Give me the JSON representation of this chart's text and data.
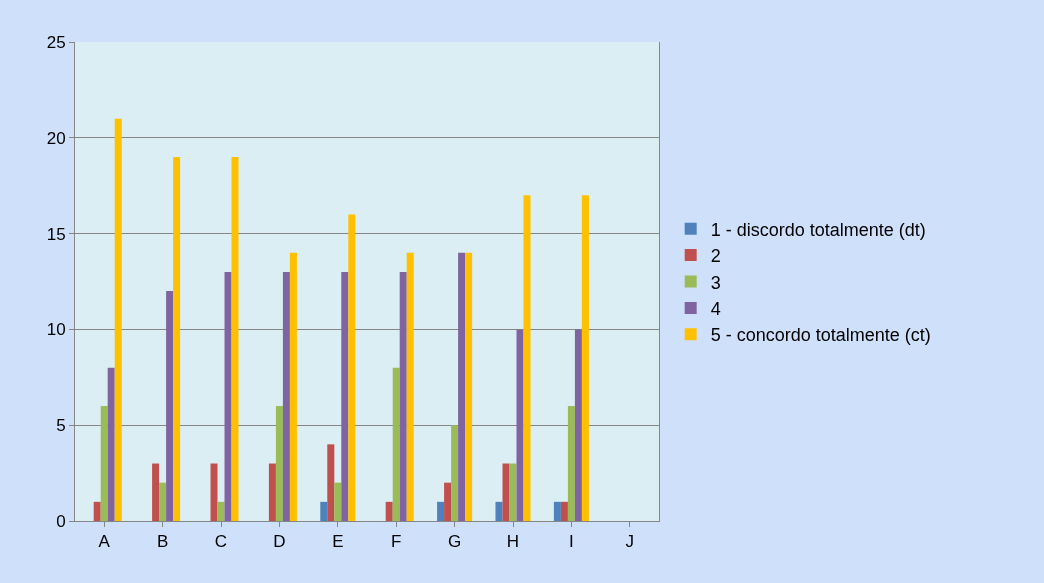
{
  "chart_data": {
    "type": "bar",
    "categories": [
      "A",
      "B",
      "C",
      "D",
      "E",
      "F",
      "G",
      "H",
      "I",
      "J"
    ],
    "series": [
      {
        "name": "1 - discordo totalmente (dt)",
        "color": "#4f81bd",
        "values": [
          0,
          0,
          0,
          0,
          1,
          0,
          1,
          1,
          1,
          0
        ]
      },
      {
        "name": "2",
        "color": "#c0504d",
        "values": [
          1,
          3,
          3,
          3,
          4,
          1,
          2,
          3,
          1,
          0
        ]
      },
      {
        "name": "3",
        "color": "#9bbb59",
        "values": [
          6,
          2,
          1,
          6,
          2,
          8,
          5,
          3,
          6,
          0
        ]
      },
      {
        "name": "4",
        "color": "#8064a2",
        "values": [
          8,
          12,
          13,
          13,
          13,
          13,
          14,
          10,
          10,
          0
        ]
      },
      {
        "name": "5 - concordo totalmente (ct)",
        "color": "#ffc000",
        "values": [
          21,
          19,
          19,
          14,
          16,
          14,
          14,
          17,
          17,
          0
        ]
      }
    ],
    "ylim": [
      0,
      25
    ],
    "yticks": [
      0,
      5,
      10,
      15,
      20,
      25
    ],
    "grid": "y",
    "legend": "right"
  }
}
